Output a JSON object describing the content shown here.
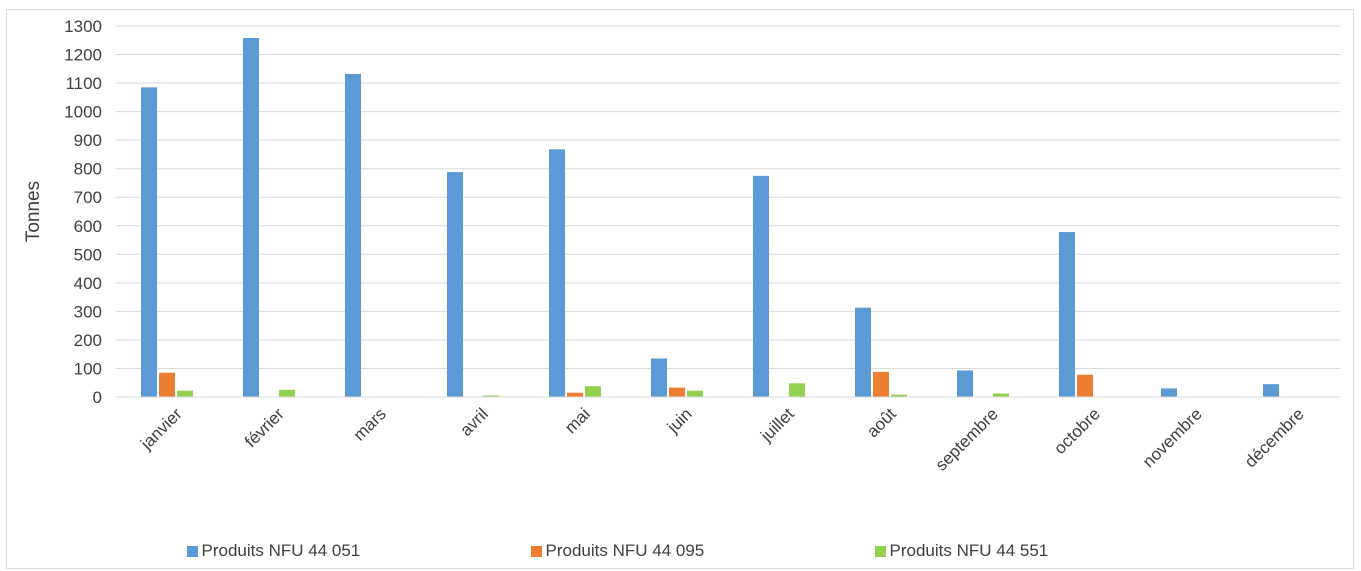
{
  "chart_data": {
    "type": "bar",
    "title": "",
    "xlabel": "",
    "ylabel": "Tonnes",
    "ylim": [
      0,
      1300
    ],
    "yticks": [
      "0",
      "100",
      "200",
      "300",
      "400",
      "500",
      "600",
      "700",
      "800",
      "900",
      "1000",
      "1100",
      "1200",
      "1300"
    ],
    "grid": true,
    "legend_position": "bottom",
    "categories": [
      "janvier",
      "février",
      "mars",
      "avril",
      "mai",
      "juin",
      "juillet",
      "août",
      "septembre",
      "octobre",
      "novembre",
      "décembre"
    ],
    "series": [
      {
        "name": "Produits NFU 44 051",
        "color": "#5b9bd5",
        "values": [
          1085,
          1258,
          1132,
          788,
          868,
          135,
          775,
          313,
          93,
          578,
          30,
          45
        ]
      },
      {
        "name": "Produits NFU 44 095",
        "color": "#ed7d31",
        "values": [
          85,
          0,
          0,
          0,
          15,
          33,
          0,
          88,
          0,
          78,
          0,
          0
        ]
      },
      {
        "name": "Produits NFU 44 551",
        "color": "#92d050",
        "values": [
          22,
          25,
          0,
          5,
          38,
          22,
          48,
          8,
          12,
          0,
          0,
          0
        ]
      }
    ]
  }
}
